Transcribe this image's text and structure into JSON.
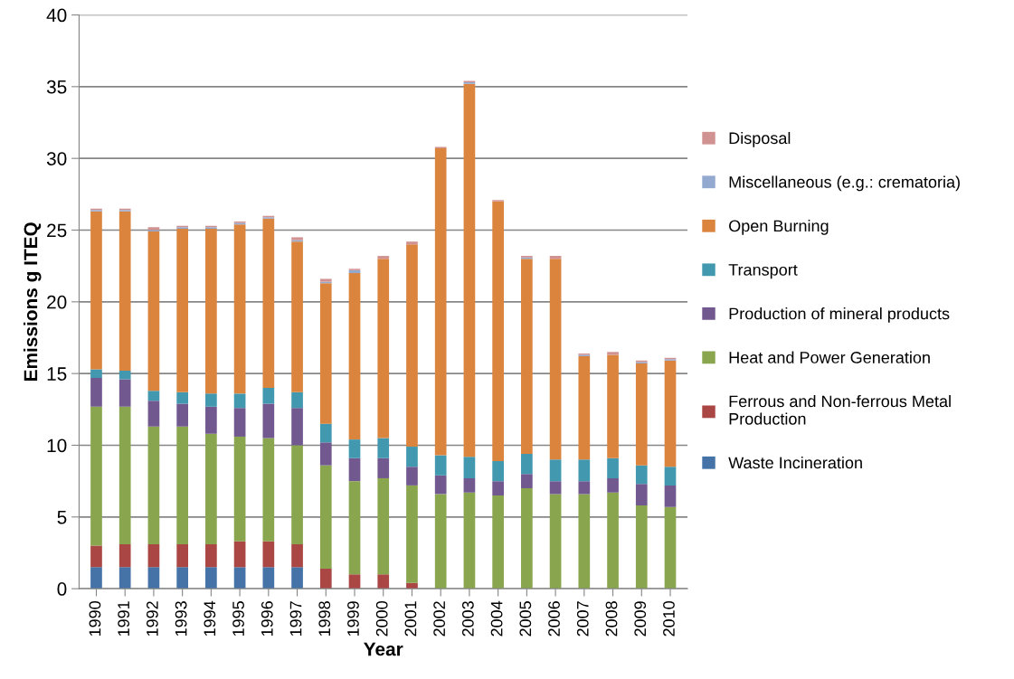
{
  "chart_data": {
    "type": "bar",
    "stacked": true,
    "xlabel": "Year",
    "ylabel": "Emissions g ITEQ",
    "categories": [
      "1990",
      "1991",
      "1992",
      "1993",
      "1994",
      "1995",
      "1996",
      "1997",
      "1998",
      "1999",
      "2000",
      "2001",
      "2002",
      "2003",
      "2004",
      "2005",
      "2006",
      "2007",
      "2008",
      "2009",
      "2010"
    ],
    "series": [
      {
        "name": "Waste Incineration",
        "color": "#4572a7",
        "values": [
          1.5,
          1.5,
          1.5,
          1.5,
          1.5,
          1.5,
          1.5,
          1.5,
          0,
          0,
          0,
          0,
          0,
          0,
          0,
          0,
          0,
          0,
          0,
          0,
          0
        ]
      },
      {
        "name": "Ferrous and Non-ferrous Metal Production",
        "color": "#aa4643",
        "values": [
          1.5,
          1.6,
          1.6,
          1.6,
          1.6,
          1.8,
          1.8,
          1.6,
          1.4,
          1.0,
          1.0,
          0.4,
          0,
          0,
          0,
          0,
          0,
          0,
          0,
          0,
          0
        ]
      },
      {
        "name": "Heat and Power Generation",
        "color": "#89a54e",
        "values": [
          9.7,
          9.6,
          8.2,
          8.2,
          7.7,
          7.3,
          7.2,
          6.9,
          7.2,
          6.5,
          6.7,
          6.8,
          6.6,
          6.7,
          6.5,
          7.0,
          6.6,
          6.6,
          6.7,
          5.8,
          5.7
        ]
      },
      {
        "name": "Production of mineral products",
        "color": "#71588f",
        "values": [
          2.0,
          1.9,
          1.8,
          1.6,
          1.9,
          2.0,
          2.4,
          2.6,
          1.6,
          1.6,
          1.4,
          1.3,
          1.3,
          1.0,
          1.0,
          1.0,
          0.9,
          0.9,
          1.0,
          1.5,
          1.5
        ]
      },
      {
        "name": "Transport",
        "color": "#4198af",
        "values": [
          0.6,
          0.6,
          0.7,
          0.8,
          0.9,
          1.0,
          1.1,
          1.1,
          1.3,
          1.3,
          1.4,
          1.4,
          1.4,
          1.5,
          1.4,
          1.4,
          1.5,
          1.5,
          1.4,
          1.3,
          1.3
        ]
      },
      {
        "name": "Open Burning",
        "color": "#db843d",
        "values": [
          11.0,
          11.1,
          11.1,
          11.4,
          11.5,
          11.8,
          11.8,
          10.5,
          9.8,
          11.6,
          12.5,
          14.1,
          21.4,
          26.0,
          18.1,
          13.6,
          14.0,
          7.2,
          7.2,
          7.1,
          7.4
        ]
      },
      {
        "name": "Miscellaneous (e.g.: crematoria)",
        "color": "#93a9cf",
        "values": [
          0.1,
          0.1,
          0.1,
          0.1,
          0.1,
          0.1,
          0.1,
          0.1,
          0.1,
          0.2,
          0,
          0,
          0,
          0.1,
          0,
          0.1,
          0,
          0.1,
          0,
          0.1,
          0.1
        ]
      },
      {
        "name": "Disposal",
        "color": "#d19392",
        "values": [
          0.1,
          0.1,
          0.2,
          0.1,
          0.1,
          0.1,
          0.1,
          0.2,
          0.2,
          0.1,
          0.2,
          0.2,
          0.1,
          0.1,
          0.1,
          0.1,
          0.2,
          0.1,
          0.2,
          0.1,
          0.1
        ]
      }
    ],
    "ylim": [
      0,
      40
    ],
    "yticks": [
      0,
      5,
      10,
      15,
      20,
      25,
      30,
      35,
      40
    ],
    "grid": "y",
    "legend": "right"
  }
}
